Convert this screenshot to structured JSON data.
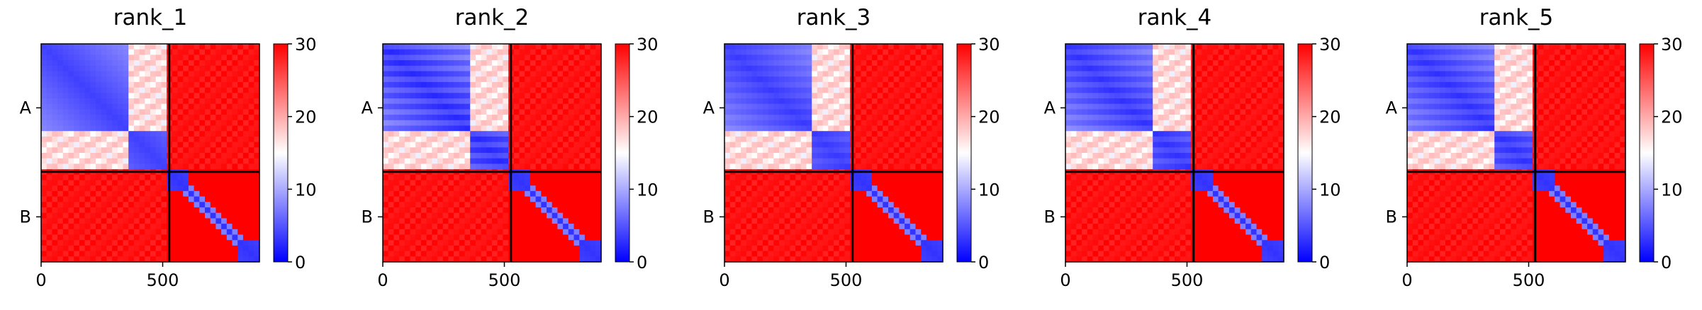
{
  "chart_data": {
    "type": "heatmap",
    "colormap": [
      "#0000ff",
      "#ffffff",
      "#ff0000"
    ],
    "colorbar": {
      "min": 0,
      "max": 30,
      "ticks": [
        0,
        10,
        20,
        30
      ]
    },
    "x_ticks": [
      0,
      500
    ],
    "x_range": [
      0,
      898
    ],
    "chain_boundary": 527,
    "chains": [
      "A",
      "B"
    ],
    "panels": [
      {
        "title": "rank_1"
      },
      {
        "title": "rank_2"
      },
      {
        "title": "rank_3"
      },
      {
        "title": "rank_4"
      },
      {
        "title": "rank_5"
      }
    ]
  }
}
